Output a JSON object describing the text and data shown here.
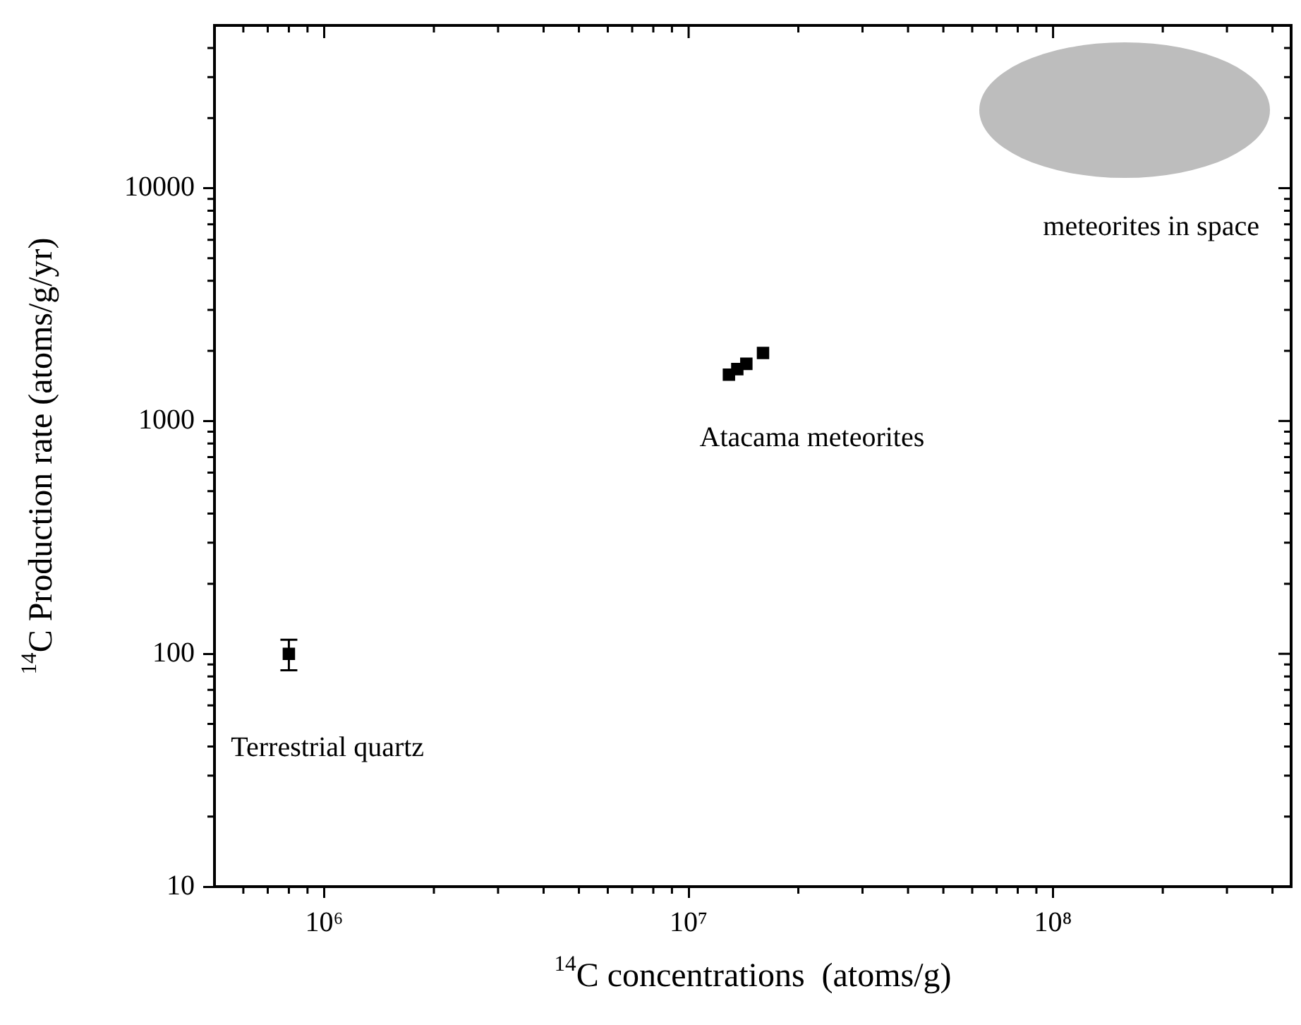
{
  "chart_data": {
    "type": "scatter",
    "xlabel": "$^{14}$C concentrations  (atoms/g)",
    "ylabel": "$^{14}$C Production rate (atoms/g/yr)",
    "log": "xy",
    "marker": "square",
    "grid": false,
    "legend": false,
    "xlim": [
      500000,
      450000000
    ],
    "xticks": [
      {
        "value": 1000000,
        "label": "10⁶"
      },
      {
        "value": 10000000,
        "label": "10⁷"
      },
      {
        "value": 100000000,
        "label": "10⁸"
      }
    ],
    "ylim": [
      10,
      50000
    ],
    "yticks": [
      10,
      100,
      1000,
      10000
    ],
    "series": [
      {
        "color": "#000000",
        "x": [
          800000
        ],
        "values": [
          100
        ],
        "errors": [
          15
        ]
      },
      {
        "color": "#000000",
        "x": [
          12900000,
          13600000,
          14400000,
          16000000
        ],
        "values": [
          1580,
          1670,
          1760,
          1960
        ]
      }
    ],
    "annotations": [
      "Terrestrial quartz",
      "Atacama meteorites",
      "meteorites in space"
    ]
  }
}
